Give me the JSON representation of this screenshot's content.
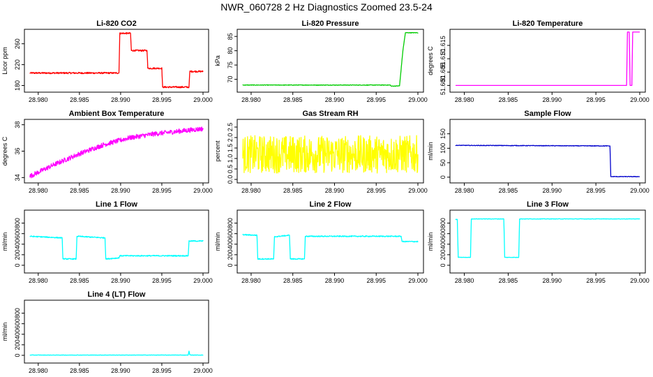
{
  "page": {
    "title": "NWR_060728  2 Hz Diagnostics Zoomed 23.5-24"
  },
  "x_ticks": [
    "28.980",
    "28.985",
    "28.990",
    "28.995",
    "29.000"
  ],
  "chart_data": [
    {
      "type": "line",
      "title": "Li-820 CO2",
      "ylabel": "Licor ppm",
      "color": "#ff0000",
      "xlim": [
        28.979,
        29.0
      ],
      "ylim": [
        170,
        285
      ],
      "yticks": [
        180,
        220,
        260
      ],
      "yticklabels": [
        "180",
        "220",
        "260"
      ],
      "x": [
        28.979,
        28.9898,
        28.9899,
        28.9912,
        28.9913,
        28.9932,
        28.9933,
        28.995,
        28.9951,
        28.9983,
        28.9984,
        29.0
      ],
      "y": [
        204,
        204,
        280,
        280,
        247,
        247,
        213,
        213,
        177,
        177,
        207,
        207
      ],
      "noise": 1.5
    },
    {
      "type": "line",
      "title": "Li-820 Pressure",
      "ylabel": "kPa",
      "color": "#00cc00",
      "xlim": [
        28.979,
        29.0
      ],
      "ylim": [
        66,
        87
      ],
      "yticks": [
        70,
        75,
        80,
        85
      ],
      "yticklabels": [
        "70",
        "75",
        "80",
        "85"
      ],
      "x": [
        28.979,
        28.9967,
        28.9968,
        28.9978,
        28.9982,
        28.9985,
        29.0
      ],
      "y": [
        68,
        68,
        67.6,
        67.7,
        80,
        86.3,
        86.3
      ],
      "noise": 0.1
    },
    {
      "type": "line",
      "title": "Li-820 Temperature",
      "ylabel": "degrees C",
      "color": "#ff00ff",
      "xlim": [
        28.979,
        29.0
      ],
      "ylim": [
        51.598,
        51.6205
      ],
      "yticks": [
        51.6,
        51.605,
        51.61,
        51.615
      ],
      "yticklabels": [
        "51.600",
        "51.605",
        "51.610",
        "51.615"
      ],
      "x": [
        28.979,
        28.9985,
        28.9986,
        28.9988,
        28.9989,
        28.9991,
        28.9992,
        29.0
      ],
      "y": [
        51.6,
        51.6,
        51.62,
        51.62,
        51.6,
        51.6,
        51.62,
        51.62
      ],
      "noise": 0
    },
    {
      "type": "line",
      "title": "Ambient Box Temperature",
      "ylabel": "degrees C",
      "color": "#ff00ff",
      "xlim": [
        28.979,
        29.0
      ],
      "ylim": [
        33.7,
        38.3
      ],
      "yticks": [
        34,
        36,
        38
      ],
      "yticklabels": [
        "34",
        "36",
        "38"
      ],
      "x": [
        28.979,
        28.982,
        28.985,
        28.988,
        28.991,
        28.994,
        28.997,
        29.0
      ],
      "y": [
        34.1,
        35.0,
        35.8,
        36.5,
        37.0,
        37.3,
        37.5,
        37.7
      ],
      "noise": 0.18
    },
    {
      "type": "line",
      "title": "Gas Stream RH",
      "ylabel": "percent",
      "color": "#ffff00",
      "xlim": [
        28.979,
        29.0
      ],
      "ylim": [
        -0.1,
        2.8
      ],
      "yticks": [
        0,
        0.5,
        1,
        1.5,
        2,
        2.5
      ],
      "yticklabels": [
        "0.0",
        "0.5",
        "1.0",
        "1.5",
        "2.0",
        "2.5"
      ],
      "x": [
        28.979,
        29.0
      ],
      "y": [
        1.2,
        1.2
      ],
      "noise": 0.9
    },
    {
      "type": "line",
      "title": "Sample Flow",
      "ylabel": "ml/min",
      "color": "#0000cc",
      "xlim": [
        28.979,
        29.0
      ],
      "ylim": [
        -15,
        195
      ],
      "yticks": [
        0,
        50,
        100,
        150
      ],
      "yticklabels": [
        "0",
        "50",
        "100",
        "150"
      ],
      "x": [
        28.979,
        28.9966,
        28.9967,
        29.0
      ],
      "y": [
        110,
        108,
        2,
        2
      ],
      "noise": 1
    },
    {
      "type": "line",
      "title": "Line 1 Flow",
      "ylabel": "ml/min",
      "color": "#00ffff",
      "xlim": [
        28.979,
        29.0
      ],
      "ylim": [
        -120,
        1020
      ],
      "yticks": [
        0,
        200,
        400,
        600,
        800
      ],
      "yticklabels": [
        "0",
        "200",
        "400",
        "600",
        "800"
      ],
      "x": [
        28.979,
        28.9829,
        28.983,
        28.9846,
        28.9847,
        28.9881,
        28.9882,
        28.9898,
        28.9899,
        28.9982,
        28.9983,
        29.0
      ],
      "y": [
        550,
        520,
        120,
        120,
        550,
        520,
        120,
        140,
        180,
        180,
        460,
        460
      ],
      "noise": 10
    },
    {
      "type": "line",
      "title": "Line 2 Flow",
      "ylabel": "ml/min",
      "color": "#00ffff",
      "xlim": [
        28.979,
        29.0
      ],
      "ylim": [
        -120,
        1020
      ],
      "yticks": [
        0,
        200,
        400,
        600,
        800
      ],
      "yticklabels": [
        "0",
        "200",
        "400",
        "600",
        "800"
      ],
      "x": [
        28.979,
        28.9807,
        28.9808,
        28.9827,
        28.9828,
        28.9846,
        28.9847,
        28.9864,
        28.9865,
        28.998,
        28.9981,
        29.0
      ],
      "y": [
        580,
        570,
        120,
        120,
        540,
        570,
        120,
        120,
        550,
        550,
        450,
        450
      ],
      "noise": 10
    },
    {
      "type": "line",
      "title": "Line 3 Flow",
      "ylabel": "ml/min",
      "color": "#00ffff",
      "xlim": [
        28.979,
        29.0
      ],
      "ylim": [
        -120,
        1020
      ],
      "yticks": [
        0,
        200,
        400,
        600,
        800
      ],
      "yticklabels": [
        "0",
        "200",
        "400",
        "600",
        "800"
      ],
      "x": [
        28.979,
        28.9792,
        28.9793,
        28.9807,
        28.9808,
        28.9845,
        28.9846,
        28.9862,
        28.9863,
        29.0
      ],
      "y": [
        870,
        870,
        150,
        150,
        880,
        880,
        150,
        150,
        880,
        880
      ],
      "noise": 4
    },
    {
      "type": "line",
      "title": "Line 4 (LT) Flow",
      "ylabel": "ml/min",
      "color": "#00ffff",
      "xlim": [
        28.979,
        29.0
      ],
      "ylim": [
        -120,
        1020
      ],
      "yticks": [
        0,
        200,
        400,
        600,
        800
      ],
      "yticklabels": [
        "0",
        "200",
        "400",
        "600",
        "800"
      ],
      "x": [
        28.979,
        28.9982,
        28.9983,
        28.9984,
        28.9986,
        29.0
      ],
      "y": [
        5,
        5,
        80,
        10,
        5,
        5
      ],
      "noise": 3
    }
  ]
}
